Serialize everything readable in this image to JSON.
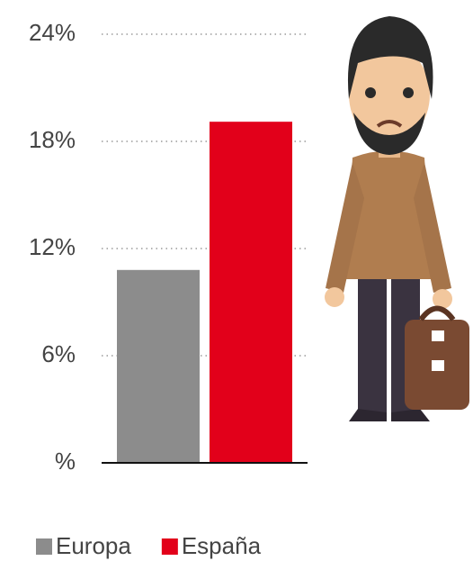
{
  "chart_data": {
    "type": "bar",
    "categories": [
      null
    ],
    "series": [
      {
        "name": "Europa",
        "color": "#8c8c8c",
        "values": [
          10.8
        ]
      },
      {
        "name": "España",
        "color": "#e2001a",
        "values": [
          19.1
        ]
      }
    ],
    "ylim": [
      0,
      24
    ],
    "yticks": [
      {
        "value": 0,
        "label": "%"
      },
      {
        "value": 6,
        "label": "6%"
      },
      {
        "value": 12,
        "label": "12%"
      },
      {
        "value": 18,
        "label": "18%"
      },
      {
        "value": 24,
        "label": "24%"
      }
    ],
    "grid": true,
    "legend": "bottom"
  }
}
